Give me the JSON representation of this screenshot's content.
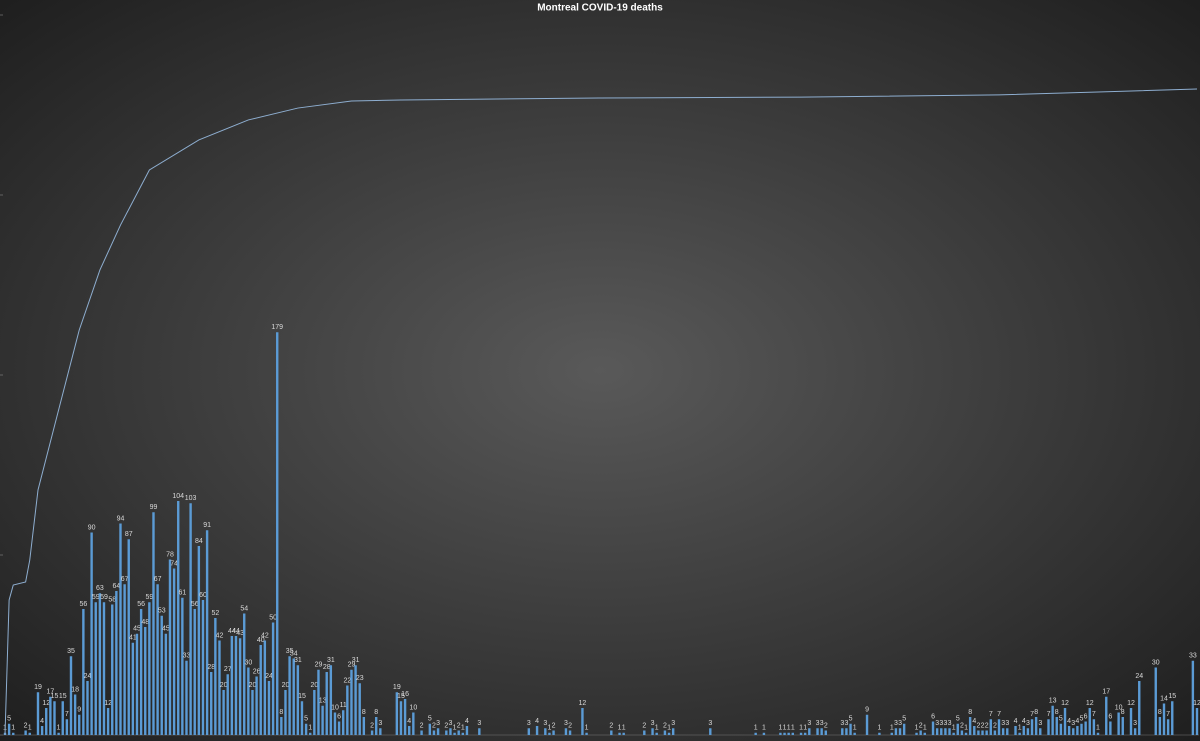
{
  "chart_data": {
    "type": "bar",
    "title": "Montreal COVID-19 deaths",
    "color": "#5b9bd5",
    "x": [
      0,
      1,
      2,
      5,
      6,
      8,
      9,
      10,
      11,
      12,
      13,
      14,
      15,
      16,
      17,
      18,
      19,
      20,
      21,
      22,
      23,
      24,
      25,
      26,
      27,
      28,
      29,
      30,
      31,
      32,
      33,
      34,
      35,
      36,
      37,
      38,
      39,
      40,
      41,
      42,
      43,
      44,
      45,
      46,
      47,
      48,
      49,
      50,
      51,
      52,
      53,
      54,
      55,
      56,
      57,
      58,
      59,
      60,
      61,
      62,
      63,
      64,
      65,
      66,
      67,
      68,
      69,
      70,
      71,
      72,
      73,
      74,
      75,
      76,
      77,
      78,
      79,
      80,
      81,
      82,
      83,
      84,
      85,
      86,
      87,
      89,
      90,
      91,
      95,
      96,
      97,
      98,
      99,
      101,
      103,
      104,
      105,
      107,
      108,
      109,
      110,
      111,
      112,
      115,
      127,
      129,
      131,
      132,
      133,
      136,
      137,
      140,
      141,
      147,
      149,
      150,
      155,
      157,
      158,
      160,
      161,
      162,
      171,
      182,
      184,
      188,
      189,
      190,
      191,
      193,
      194,
      195,
      197,
      198,
      199,
      203,
      204,
      205,
      206,
      209,
      212,
      215,
      216,
      217,
      218,
      221,
      222,
      223,
      225,
      226,
      227,
      228,
      229,
      230,
      231,
      232,
      233,
      234,
      235,
      236,
      237,
      238,
      239,
      240,
      241,
      242,
      243,
      245,
      246,
      247,
      248,
      249,
      250,
      251,
      253,
      254,
      255,
      256,
      257,
      258,
      259,
      260,
      261,
      262,
      263,
      264,
      265,
      267,
      268,
      270,
      271,
      273,
      274,
      275,
      279,
      280,
      281,
      282,
      283,
      288,
      289
    ],
    "values": [
      1,
      5,
      1,
      2,
      1,
      19,
      4,
      12,
      17,
      15,
      1,
      15,
      7,
      35,
      18,
      9,
      56,
      24,
      90,
      59,
      63,
      59,
      12,
      58,
      64,
      94,
      67,
      87,
      41,
      45,
      56,
      48,
      59,
      99,
      67,
      53,
      45,
      78,
      74,
      104,
      61,
      33,
      103,
      56,
      84,
      60,
      91,
      28,
      52,
      42,
      20,
      27,
      44,
      44,
      43,
      54,
      30,
      20,
      26,
      40,
      42,
      24,
      50,
      179,
      8,
      20,
      35,
      34,
      31,
      15,
      5,
      1,
      20,
      29,
      13,
      28,
      31,
      10,
      6,
      11,
      22,
      29,
      31,
      23,
      8,
      2,
      8,
      3,
      19,
      15,
      16,
      4,
      10,
      2,
      5,
      2,
      3,
      2,
      3,
      1,
      2,
      1,
      4,
      3,
      3,
      4,
      3,
      1,
      2,
      3,
      2,
      12,
      1,
      2,
      1,
      1,
      2,
      3,
      1,
      2,
      1,
      3,
      3,
      1,
      1,
      1,
      1,
      1,
      1,
      1,
      1,
      3,
      3,
      3,
      2,
      3,
      3,
      5,
      1,
      9,
      1,
      1,
      3,
      3,
      5,
      1,
      2,
      1,
      6,
      3,
      3,
      3,
      3,
      1,
      5,
      2,
      1,
      8,
      4,
      2,
      2,
      2,
      7,
      2,
      7,
      3,
      3,
      4,
      1,
      4,
      3,
      7,
      8,
      3,
      7,
      13,
      8,
      5,
      12,
      4,
      3,
      4,
      5,
      6,
      12,
      7,
      1,
      17,
      6,
      10,
      8,
      12,
      3,
      24,
      30,
      8,
      14,
      7,
      15,
      33,
      12
    ],
    "xlim": [
      0,
      289
    ],
    "ylim": [
      0,
      320
    ],
    "yticks": [
      0,
      80,
      160,
      240,
      320
    ],
    "line": {
      "color": "#8eaed0",
      "axis": "y2",
      "x": [
        0,
        1,
        2,
        5,
        6,
        8,
        13,
        18,
        23,
        28,
        35,
        47,
        59,
        71,
        84,
        96,
        144,
        193,
        241,
        265,
        289
      ],
      "values": [
        0,
        750,
        833,
        850,
        972,
        1361,
        1806,
        2250,
        2583,
        2833,
        3139,
        3306,
        3417,
        3483,
        3522,
        3528,
        3539,
        3544,
        3556,
        3572,
        3589
      ]
    },
    "y2lim": [
      0,
      4000
    ]
  }
}
